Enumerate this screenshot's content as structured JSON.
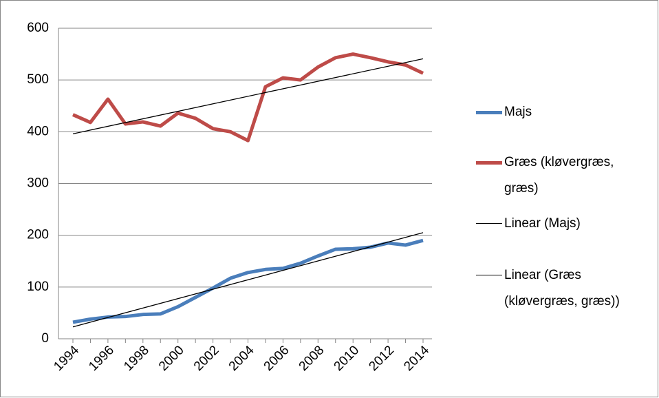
{
  "chart_data": {
    "type": "line",
    "x": [
      1994,
      1995,
      1996,
      1997,
      1998,
      1999,
      2000,
      2001,
      2002,
      2003,
      2004,
      2005,
      2006,
      2007,
      2008,
      2009,
      2010,
      2011,
      2012,
      2013,
      2014
    ],
    "xlim": [
      1994,
      2014
    ],
    "xticks": [
      1994,
      1996,
      1998,
      2000,
      2002,
      2004,
      2006,
      2008,
      2010,
      2012,
      2014
    ],
    "ylim": [
      0,
      600
    ],
    "yticks": [
      0,
      100,
      200,
      300,
      400,
      500,
      600
    ],
    "grid": true,
    "series": [
      {
        "name": "Majs",
        "color": "#4a7ebb",
        "values": [
          32,
          38,
          42,
          43,
          47,
          48,
          62,
          80,
          98,
          117,
          128,
          134,
          136,
          146,
          160,
          173,
          174,
          177,
          185,
          181,
          190
        ]
      },
      {
        "name": "Græs (kløvergræs, græs)",
        "color": "#be4b48",
        "values": [
          433,
          418,
          463,
          415,
          419,
          411,
          436,
          426,
          406,
          400,
          383,
          487,
          504,
          500,
          525,
          543,
          550,
          543,
          535,
          529,
          513
        ]
      }
    ],
    "trendlines": [
      {
        "name": "Linear (Majs)",
        "color": "#000000",
        "x": [
          1994,
          2014
        ],
        "values": [
          23,
          205
        ]
      },
      {
        "name": "Linear (Græs (kløvergræs, græs))",
        "color": "#000000",
        "x": [
          1994,
          2014
        ],
        "values": [
          396,
          541
        ]
      }
    ]
  }
}
